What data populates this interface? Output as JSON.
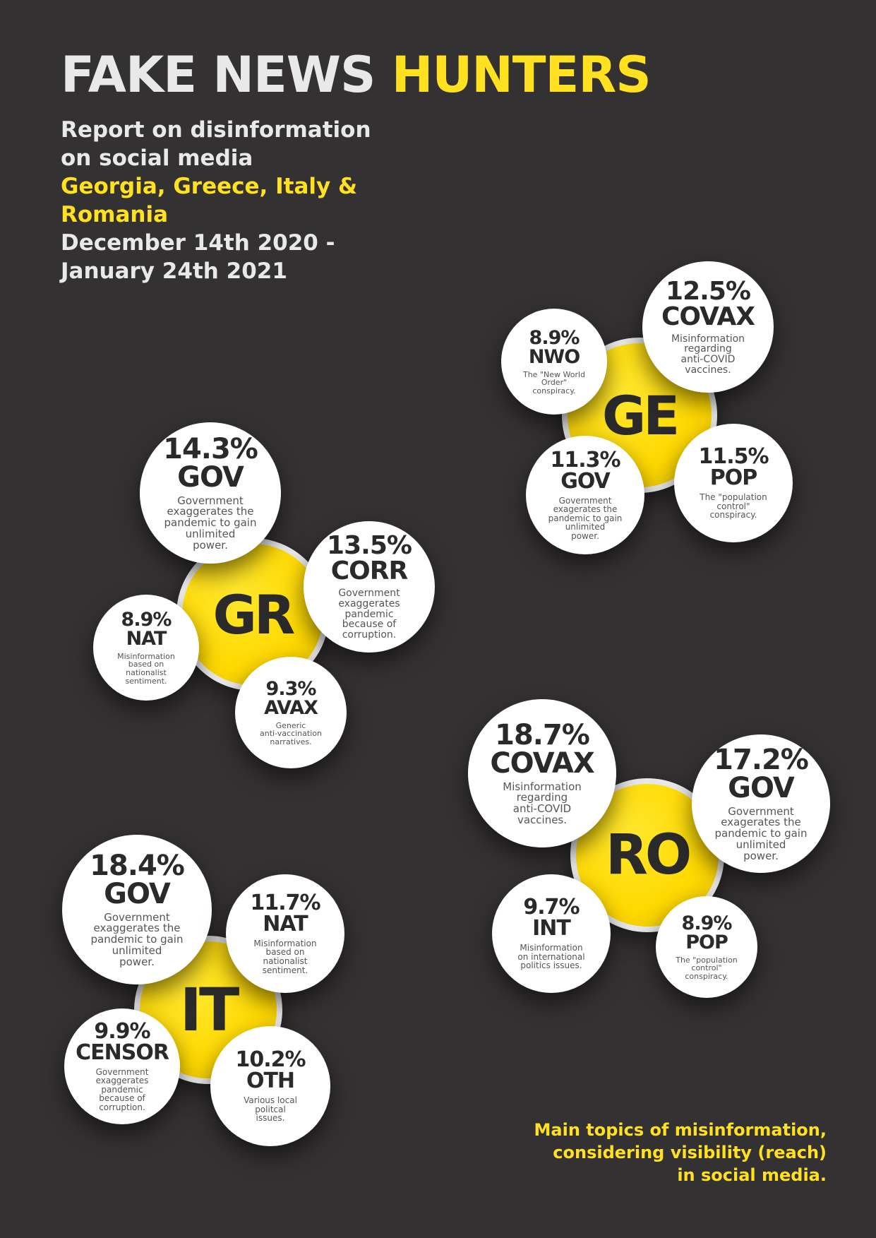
{
  "header": {
    "title_white": "FAKE NEWS",
    "title_yellow": "HUNTERS",
    "line1": "Report on disinformation",
    "line2": "on social media",
    "countries_line1": "Georgia, Greece, Italy &",
    "countries_line2": "Romania",
    "dates_line1": "December 14th 2020 -",
    "dates_line2": "January 24th 2021"
  },
  "caption": {
    "line1": "Main topics of misinformation,",
    "line2": "considering visibility (reach)",
    "line3": "in social media."
  },
  "colors": {
    "background": "#343132",
    "accent": "#ffe11f",
    "bubble": "#ffffff"
  },
  "clusters": {
    "ge": {
      "label": "GE",
      "topics": [
        {
          "pct": "12.5%",
          "code": "COVAX",
          "desc": "Misinformation\nregarding\nanti-COVID\nvaccines."
        },
        {
          "pct": "8.9%",
          "code": "NWO",
          "desc": "The \"New World\nOrder\"\nconspiracy."
        },
        {
          "pct": "11.3%",
          "code": "GOV",
          "desc": "Government\nexagerates the\npandemic to gain\nunlimited\npower."
        },
        {
          "pct": "11.5%",
          "code": "POP",
          "desc": "The \"population\ncontrol\"\nconspiracy."
        }
      ]
    },
    "gr": {
      "label": "GR",
      "topics": [
        {
          "pct": "14.3%",
          "code": "GOV",
          "desc": "Government\nexaggerates the\npandemic to gain\nunlimited\npower."
        },
        {
          "pct": "13.5%",
          "code": "CORR",
          "desc": "Government\nexaggerates\npandemic\nbecause of\ncorruption."
        },
        {
          "pct": "8.9%",
          "code": "NAT",
          "desc": "Misinformation\nbased on\nnationalist\nsentiment."
        },
        {
          "pct": "9.3%",
          "code": "AVAX",
          "desc": "Generic\nanti-vaccination\nnarratives."
        }
      ]
    },
    "it": {
      "label": "IT",
      "topics": [
        {
          "pct": "18.4%",
          "code": "GOV",
          "desc": "Government\nexaggerates the\npandemic to gain\nunlimited\npower."
        },
        {
          "pct": "11.7%",
          "code": "NAT",
          "desc": "Misinformation\nbased on\nnationalist\nsentiment."
        },
        {
          "pct": "9.9%",
          "code": "CENSOR",
          "desc": "Government\nexaggerates\npandemic\nbecause of\ncorruption."
        },
        {
          "pct": "10.2%",
          "code": "OTH",
          "desc": "Various local\npolitcal\nissues."
        }
      ]
    },
    "ro": {
      "label": "RO",
      "topics": [
        {
          "pct": "18.7%",
          "code": "COVAX",
          "desc": "Misinformation\nregarding\nanti-COVID\nvaccines."
        },
        {
          "pct": "17.2%",
          "code": "GOV",
          "desc": "Government\nexagerates the\npandemic to gain\nunlimited\npower."
        },
        {
          "pct": "9.7%",
          "code": "INT",
          "desc": "Misinformation\non international\npolitics issues."
        },
        {
          "pct": "8.9%",
          "code": "POP",
          "desc": "The \"population\ncontrol\"\nconspiracy."
        }
      ]
    }
  }
}
